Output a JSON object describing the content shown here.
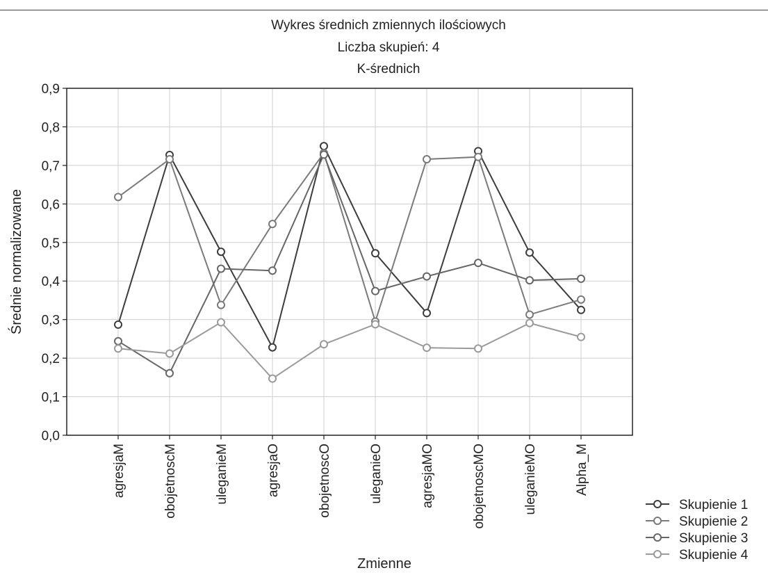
{
  "chart_data": {
    "type": "line",
    "title_lines": [
      "Wykres średnich zmiennych ilościowych",
      "Liczba skupień: 4",
      "K-średnich"
    ],
    "xlabel": "Zmienne",
    "ylabel": "Średnie normalizowane",
    "categories": [
      "agresjaM",
      "obojetnoscM",
      "uleganieM",
      "agresjaO",
      "obojetnoscO",
      "uleganieO",
      "agresjaMO",
      "obojetnoscMO",
      "uleganieMO",
      "Alpha_M"
    ],
    "ylim": [
      0,
      0.9
    ],
    "yticks": [
      "0,0",
      "0,1",
      "0,2",
      "0,3",
      "0,4",
      "0,5",
      "0,6",
      "0,7",
      "0,8",
      "0,9"
    ],
    "grid": true,
    "legend_position": "bottom-right",
    "series": [
      {
        "name": "Skupienie 1",
        "color": "#3c3c3c",
        "values": [
          0.287,
          0.727,
          0.476,
          0.228,
          0.75,
          0.472,
          0.317,
          0.737,
          0.474,
          0.325
        ]
      },
      {
        "name": "Skupienie 2",
        "color": "#7a7a7a",
        "values": [
          0.618,
          0.716,
          0.338,
          0.548,
          0.732,
          0.295,
          0.716,
          0.722,
          0.313,
          0.352
        ]
      },
      {
        "name": "Skupienie 3",
        "color": "#666666",
        "values": [
          0.244,
          0.161,
          0.432,
          0.427,
          0.728,
          0.374,
          0.412,
          0.447,
          0.402,
          0.406
        ]
      },
      {
        "name": "Skupienie 4",
        "color": "#9a9a9a",
        "values": [
          0.225,
          0.212,
          0.293,
          0.147,
          0.236,
          0.288,
          0.227,
          0.225,
          0.291,
          0.255
        ]
      }
    ]
  }
}
